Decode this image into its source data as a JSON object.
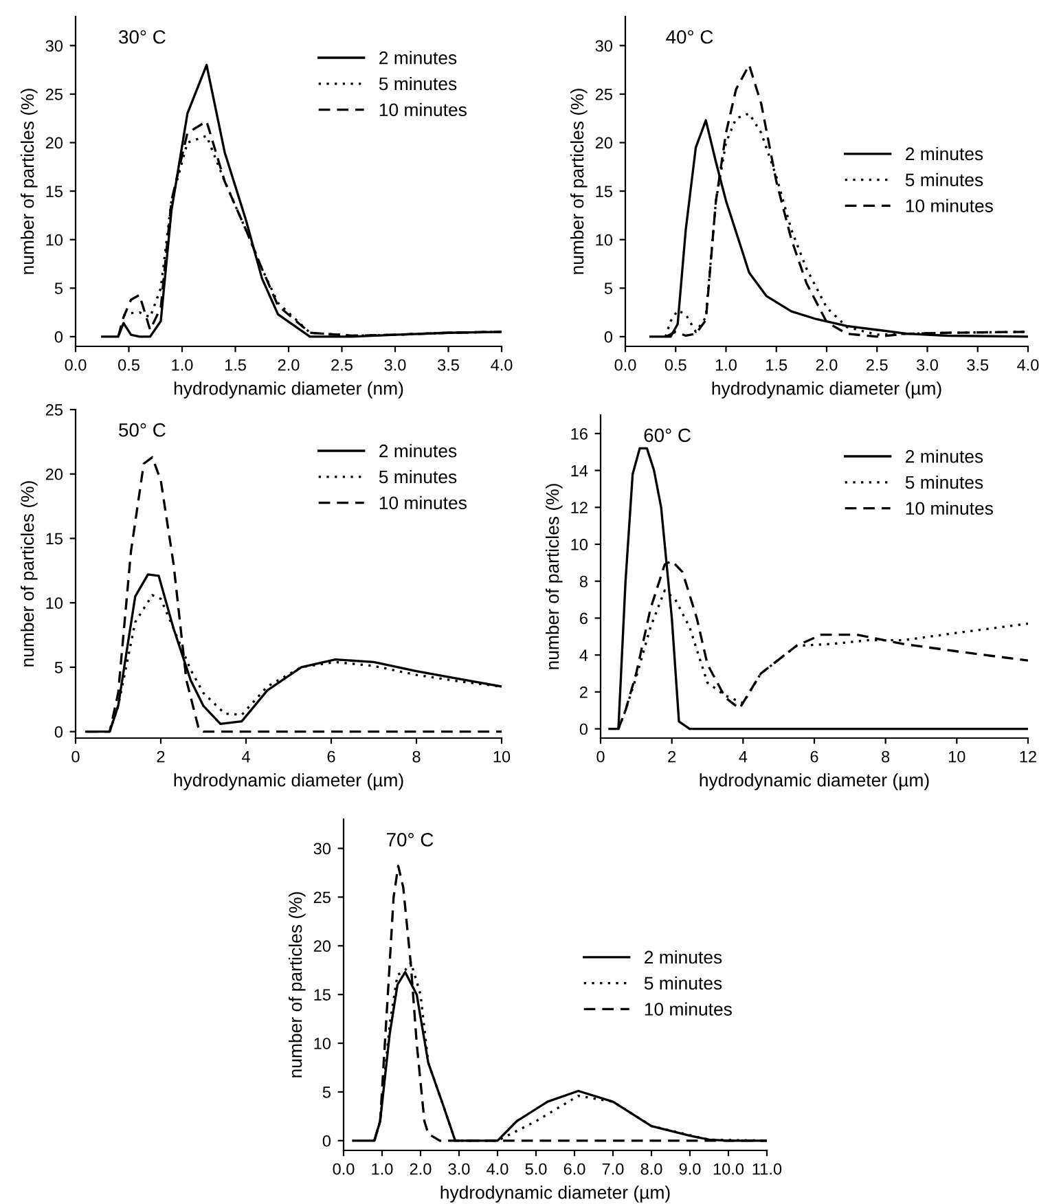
{
  "chart_data": [
    {
      "type": "line",
      "title": "30° C",
      "xlabel": "hydrodynamic diameter (nm)",
      "ylabel": "number of particles (%)",
      "xlim": [
        0,
        4
      ],
      "ylim": [
        -1,
        33
      ],
      "xticks": [
        {
          "value": 0,
          "label": "0.0"
        },
        0.5,
        {
          "value": 1,
          "label": "1.0"
        },
        1.5,
        {
          "value": 2,
          "label": "2.0"
        },
        2.5,
        {
          "value": 3,
          "label": "3.0"
        },
        3.5,
        {
          "value": 4,
          "label": "4.0"
        }
      ],
      "yticks": [
        0,
        5,
        10,
        15,
        20,
        25,
        30
      ],
      "legend": "upper right",
      "grid": false,
      "series": [
        {
          "name": "2 minutes",
          "color": "#000000",
          "line_style": "solid",
          "x": [
            0.25,
            0.4,
            0.45,
            0.52,
            0.6,
            0.7,
            0.8,
            0.9,
            1.05,
            1.23,
            1.4,
            1.6,
            1.75,
            1.9,
            2.2,
            2.6,
            3.0,
            3.5,
            4.0
          ],
          "values": [
            0,
            0,
            1.4,
            0.2,
            0,
            0,
            1.6,
            13,
            23,
            28,
            19,
            12,
            6,
            2.3,
            0,
            0,
            0.2,
            0.4,
            0.5
          ]
        },
        {
          "name": "5 minutes",
          "color": "#000000",
          "line_style": "dotted",
          "x": [
            0.45,
            0.5,
            0.6,
            0.7,
            0.8,
            0.9,
            1.05,
            1.23,
            1.4,
            1.6,
            1.75,
            1.9,
            2.2,
            2.6,
            3.0,
            3.5,
            4.0
          ],
          "values": [
            2.2,
            2.4,
            2.5,
            2.0,
            5,
            14,
            20,
            20.7,
            16,
            11,
            7,
            3.5,
            0.4,
            0.1,
            0.2,
            0.4,
            0.5
          ]
        },
        {
          "name": "10 minutes",
          "color": "#000000",
          "line_style": "dashed",
          "x": [
            0.4,
            0.45,
            0.52,
            0.6,
            0.7,
            0.8,
            0.9,
            1.05,
            1.23,
            1.4,
            1.6,
            1.75,
            1.9,
            2.2,
            2.6,
            3.0,
            3.5,
            4.0
          ],
          "values": [
            0,
            2.0,
            3.8,
            4.3,
            0.7,
            3,
            14,
            21,
            22.2,
            16,
            11,
            7,
            3.2,
            0.4,
            0.1,
            0.2,
            0.4,
            0.5
          ]
        }
      ]
    },
    {
      "type": "line",
      "title": "40° C",
      "xlabel": "hydrodynamic diameter (µm)",
      "ylabel": "number of particles (%)",
      "xlim": [
        0,
        4
      ],
      "ylim": [
        -1,
        33
      ],
      "xticks": [
        {
          "value": 0,
          "label": "0.0"
        },
        0.5,
        {
          "value": 1,
          "label": "1.0"
        },
        1.5,
        {
          "value": 2,
          "label": "2.0"
        },
        2.5,
        {
          "value": 3,
          "label": "3.0"
        },
        3.5,
        {
          "value": 4,
          "label": "4.0"
        }
      ],
      "yticks": [
        0,
        5,
        10,
        15,
        20,
        25,
        30
      ],
      "legend": "center right",
      "grid": false,
      "series": [
        {
          "name": "2 minutes",
          "color": "#000000",
          "line_style": "solid",
          "x": [
            0.25,
            0.45,
            0.52,
            0.6,
            0.7,
            0.8,
            0.9,
            1.0,
            1.1,
            1.23,
            1.4,
            1.65,
            1.9,
            2.2,
            2.5,
            2.8,
            3.2,
            4.0
          ],
          "values": [
            0,
            0,
            1.3,
            11,
            19.5,
            22.3,
            18,
            14,
            10.8,
            6.6,
            4.2,
            2.6,
            1.8,
            1.1,
            0.7,
            0.3,
            0.1,
            0
          ]
        },
        {
          "name": "5 minutes",
          "color": "#000000",
          "line_style": "dotted",
          "x": [
            0.4,
            0.45,
            0.52,
            0.6,
            0.7,
            0.8,
            0.9,
            1.0,
            1.1,
            1.23,
            1.35,
            1.5,
            1.65,
            1.8,
            2.0,
            2.2,
            2.5,
            2.8,
            3.2,
            4.0
          ],
          "values": [
            0,
            1.6,
            2.7,
            2.3,
            0.5,
            2,
            14,
            20,
            22.5,
            23,
            21,
            16.5,
            11,
            7,
            3,
            1,
            0.2,
            0.3,
            0.4,
            0.5
          ]
        },
        {
          "name": "10 minutes",
          "color": "#000000",
          "line_style": "dashed",
          "x": [
            0.4,
            0.5,
            0.6,
            0.7,
            0.8,
            0.9,
            1.0,
            1.1,
            1.23,
            1.35,
            1.5,
            1.65,
            1.8,
            2.0,
            2.2,
            2.5,
            2.8,
            3.2,
            4.0
          ],
          "values": [
            0,
            0.5,
            0.1,
            0.3,
            1.7,
            14,
            21,
            25.5,
            28,
            24,
            16,
            10,
            5.5,
            1.5,
            0.3,
            0,
            0.3,
            0.4,
            0.5
          ]
        }
      ]
    },
    {
      "type": "line",
      "title": "50° C",
      "xlabel": "hydrodynamic diameter (µm)",
      "ylabel": "number of particles (%)",
      "xlim": [
        0,
        10
      ],
      "ylim": [
        -0.5,
        25
      ],
      "xticks": [
        0,
        2,
        4,
        6,
        8,
        10
      ],
      "yticks": [
        0,
        5,
        10,
        15,
        20,
        25
      ],
      "legend": "upper right",
      "grid": false,
      "series": [
        {
          "name": "2 minutes",
          "color": "#000000",
          "line_style": "solid",
          "x": [
            0.25,
            0.5,
            0.8,
            1.0,
            1.4,
            1.7,
            1.95,
            2.3,
            2.7,
            3.0,
            3.4,
            3.9,
            4.5,
            5.3,
            6.1,
            7.0,
            8.0,
            9.0,
            10.0
          ],
          "values": [
            0,
            0,
            0,
            2,
            10.5,
            12.2,
            12.1,
            8,
            4,
            2,
            0.6,
            0.8,
            3.2,
            5,
            5.6,
            5.4,
            4.7,
            4.1,
            3.5
          ]
        },
        {
          "name": "5 minutes",
          "color": "#000000",
          "line_style": "dotted",
          "x": [
            0.8,
            1.0,
            1.4,
            1.8,
            2.0,
            2.3,
            2.7,
            3.0,
            3.5,
            3.9,
            4.5,
            5.3,
            6.1,
            7.0,
            8.0,
            9.0,
            10.0
          ],
          "values": [
            0,
            2,
            8.5,
            10.6,
            10.3,
            8,
            4.8,
            3,
            1.4,
            1.3,
            3.5,
            5,
            5.4,
            5.1,
            4.4,
            3.9,
            3.5
          ]
        },
        {
          "name": "10 minutes",
          "color": "#000000",
          "line_style": "dashed",
          "x": [
            0.25,
            0.8,
            1.0,
            1.3,
            1.6,
            1.8,
            2.0,
            2.3,
            2.6,
            2.9,
            3.0,
            4,
            6,
            8,
            10
          ],
          "values": [
            0,
            0,
            3,
            14,
            20.8,
            21.3,
            19.5,
            13,
            4,
            0.1,
            0,
            0,
            0,
            0,
            0
          ]
        }
      ]
    },
    {
      "type": "line",
      "title": "60° C",
      "xlabel": "hydrodynamic diameter (µm)",
      "ylabel": "number of particles (%)",
      "xlim": [
        0,
        12
      ],
      "ylim": [
        -0.5,
        17
      ],
      "xticks": [
        0,
        2,
        4,
        6,
        8,
        10,
        12
      ],
      "yticks": [
        0,
        2,
        4,
        6,
        8,
        10,
        12,
        14,
        16
      ],
      "legend": "upper right",
      "grid": false,
      "series": [
        {
          "name": "2 minutes",
          "color": "#000000",
          "line_style": "solid",
          "x": [
            0.25,
            0.5,
            0.7,
            0.9,
            1.1,
            1.3,
            1.5,
            1.7,
            2.0,
            2.2,
            2.5,
            4,
            8,
            12
          ],
          "values": [
            0,
            0,
            8,
            13.8,
            15.2,
            15.2,
            14,
            12,
            6,
            0.4,
            0,
            0,
            0,
            0
          ]
        },
        {
          "name": "5 minutes",
          "color": "#000000",
          "line_style": "dotted",
          "x": [
            0.5,
            0.7,
            1.0,
            1.4,
            1.8,
            2.1,
            2.5,
            3.0,
            3.5,
            4.0,
            4.5,
            5.5,
            6.5,
            7.5,
            8.5,
            10,
            12
          ],
          "values": [
            0,
            1,
            2.8,
            5.5,
            7.5,
            7,
            5.5,
            2.5,
            1.8,
            1.4,
            3,
            4.5,
            4.6,
            4.8,
            4.8,
            5.2,
            5.7
          ]
        },
        {
          "name": "10 minutes",
          "color": "#000000",
          "line_style": "dashed",
          "x": [
            0.5,
            0.7,
            1.0,
            1.4,
            1.8,
            2.0,
            2.3,
            2.7,
            3.0,
            3.5,
            3.9,
            4.5,
            5.5,
            6.2,
            7.2,
            8.5,
            10,
            12
          ],
          "values": [
            0,
            1,
            3,
            6.5,
            8.9,
            9.1,
            8.5,
            6,
            3.5,
            1.7,
            1.1,
            3,
            4.5,
            5.1,
            5.1,
            4.6,
            4.2,
            3.7
          ]
        }
      ]
    },
    {
      "type": "line",
      "title": "70° C",
      "xlabel": "hydrodynamic diameter (µm)",
      "ylabel": "number of particles (%)",
      "xlim": [
        0,
        11
      ],
      "ylim": [
        -1,
        33
      ],
      "xticks": [
        {
          "value": 0,
          "label": "0.0"
        },
        {
          "value": 1,
          "label": "1.0"
        },
        {
          "value": 2,
          "label": "2.0"
        },
        {
          "value": 3,
          "label": "3.0"
        },
        {
          "value": 4,
          "label": "4.0"
        },
        {
          "value": 5,
          "label": "5.0"
        },
        {
          "value": 6,
          "label": "6.0"
        },
        {
          "value": 7,
          "label": "7.0"
        },
        {
          "value": 8,
          "label": "8.0"
        },
        {
          "value": 9,
          "label": "9.0"
        },
        {
          "value": 10,
          "label": "10.0"
        },
        {
          "value": 11,
          "label": "11.0"
        }
      ],
      "yticks": [
        0,
        5,
        10,
        15,
        20,
        25,
        30
      ],
      "legend": "center right",
      "grid": false,
      "series": [
        {
          "name": "2 minutes",
          "color": "#000000",
          "line_style": "solid",
          "x": [
            0.25,
            0.8,
            0.95,
            1.2,
            1.4,
            1.6,
            1.9,
            2.2,
            2.6,
            2.9,
            3.5,
            4.0,
            4.5,
            5.3,
            6.1,
            7.0,
            8.0,
            9.0,
            9.5,
            10,
            11
          ],
          "values": [
            0,
            0,
            2,
            11,
            16,
            17.3,
            15,
            8,
            3.5,
            0,
            0,
            0,
            2,
            4,
            5.1,
            4,
            1.5,
            0.5,
            0.1,
            0,
            0
          ]
        },
        {
          "name": "5 minutes",
          "color": "#000000",
          "line_style": "dotted",
          "x": [
            0.8,
            0.95,
            1.2,
            1.4,
            1.6,
            1.75,
            2.0,
            2.2,
            2.6,
            2.9,
            4.0,
            5.0,
            6.1,
            7.0,
            8.0,
            9.5,
            11
          ],
          "values": [
            0,
            2,
            12,
            17,
            17.5,
            18.3,
            15,
            8,
            3.5,
            0,
            0,
            2,
            4.6,
            4,
            1.5,
            0.1,
            0
          ]
        },
        {
          "name": "10 minutes",
          "color": "#000000",
          "line_style": "dashed",
          "x": [
            0.8,
            0.95,
            1.15,
            1.3,
            1.42,
            1.55,
            1.75,
            1.9,
            2.1,
            2.2,
            2.5,
            3,
            11
          ],
          "values": [
            0,
            2,
            15,
            25,
            28.2,
            26,
            18,
            10,
            2,
            0.7,
            0,
            0,
            0
          ]
        }
      ]
    }
  ]
}
